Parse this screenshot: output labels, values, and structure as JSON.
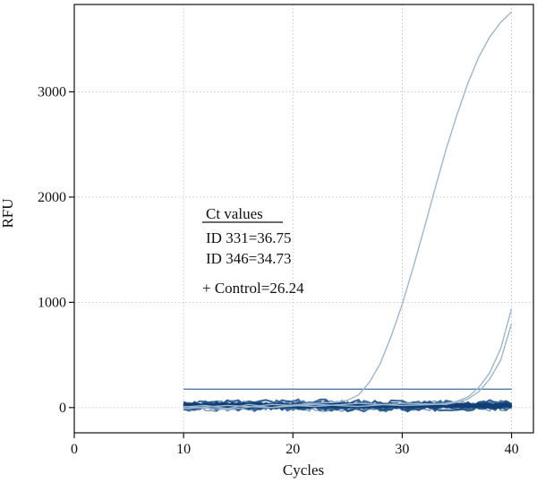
{
  "chart_data": {
    "type": "line",
    "xlabel": "Cycles",
    "ylabel": "RFU",
    "xlim": [
      0,
      42
    ],
    "ylim": [
      -240,
      3830
    ],
    "x_ticks": [
      0,
      10,
      20,
      30,
      40
    ],
    "y_ticks": [
      0,
      1000,
      2000,
      3000
    ],
    "grid": true,
    "threshold": 175,
    "annotation": {
      "heading": "Ct values",
      "lines": [
        "ID 331=36.75",
        "ID 346=34.73",
        "+ Control=26.24"
      ]
    },
    "series": [
      {
        "x": [
          10,
          12,
          14,
          16,
          18,
          20,
          22,
          24,
          25,
          26,
          27,
          28,
          29,
          30,
          31,
          32,
          33,
          34,
          35,
          36,
          37,
          38,
          39,
          40
        ],
        "y": [
          5,
          20,
          -10,
          30,
          0,
          25,
          40,
          50,
          70,
          120,
          240,
          420,
          680,
          980,
          1330,
          1700,
          2080,
          2450,
          2780,
          3080,
          3330,
          3520,
          3660,
          3760
        ]
      },
      {
        "x": [
          10,
          14,
          18,
          22,
          26,
          30,
          33,
          34,
          35,
          36,
          37,
          38,
          39,
          40
        ],
        "y": [
          10,
          -20,
          30,
          10,
          40,
          20,
          30,
          40,
          60,
          100,
          190,
          330,
          560,
          940
        ]
      },
      {
        "x": [
          10,
          14,
          18,
          22,
          26,
          30,
          34,
          35,
          36,
          37,
          38,
          39,
          40
        ],
        "y": [
          -10,
          20,
          0,
          30,
          10,
          40,
          30,
          50,
          80,
          150,
          270,
          450,
          800
        ]
      }
    ],
    "noise_band": {
      "x_range": [
        10,
        40
      ],
      "center": 20,
      "spread": 70,
      "count": 16
    }
  }
}
